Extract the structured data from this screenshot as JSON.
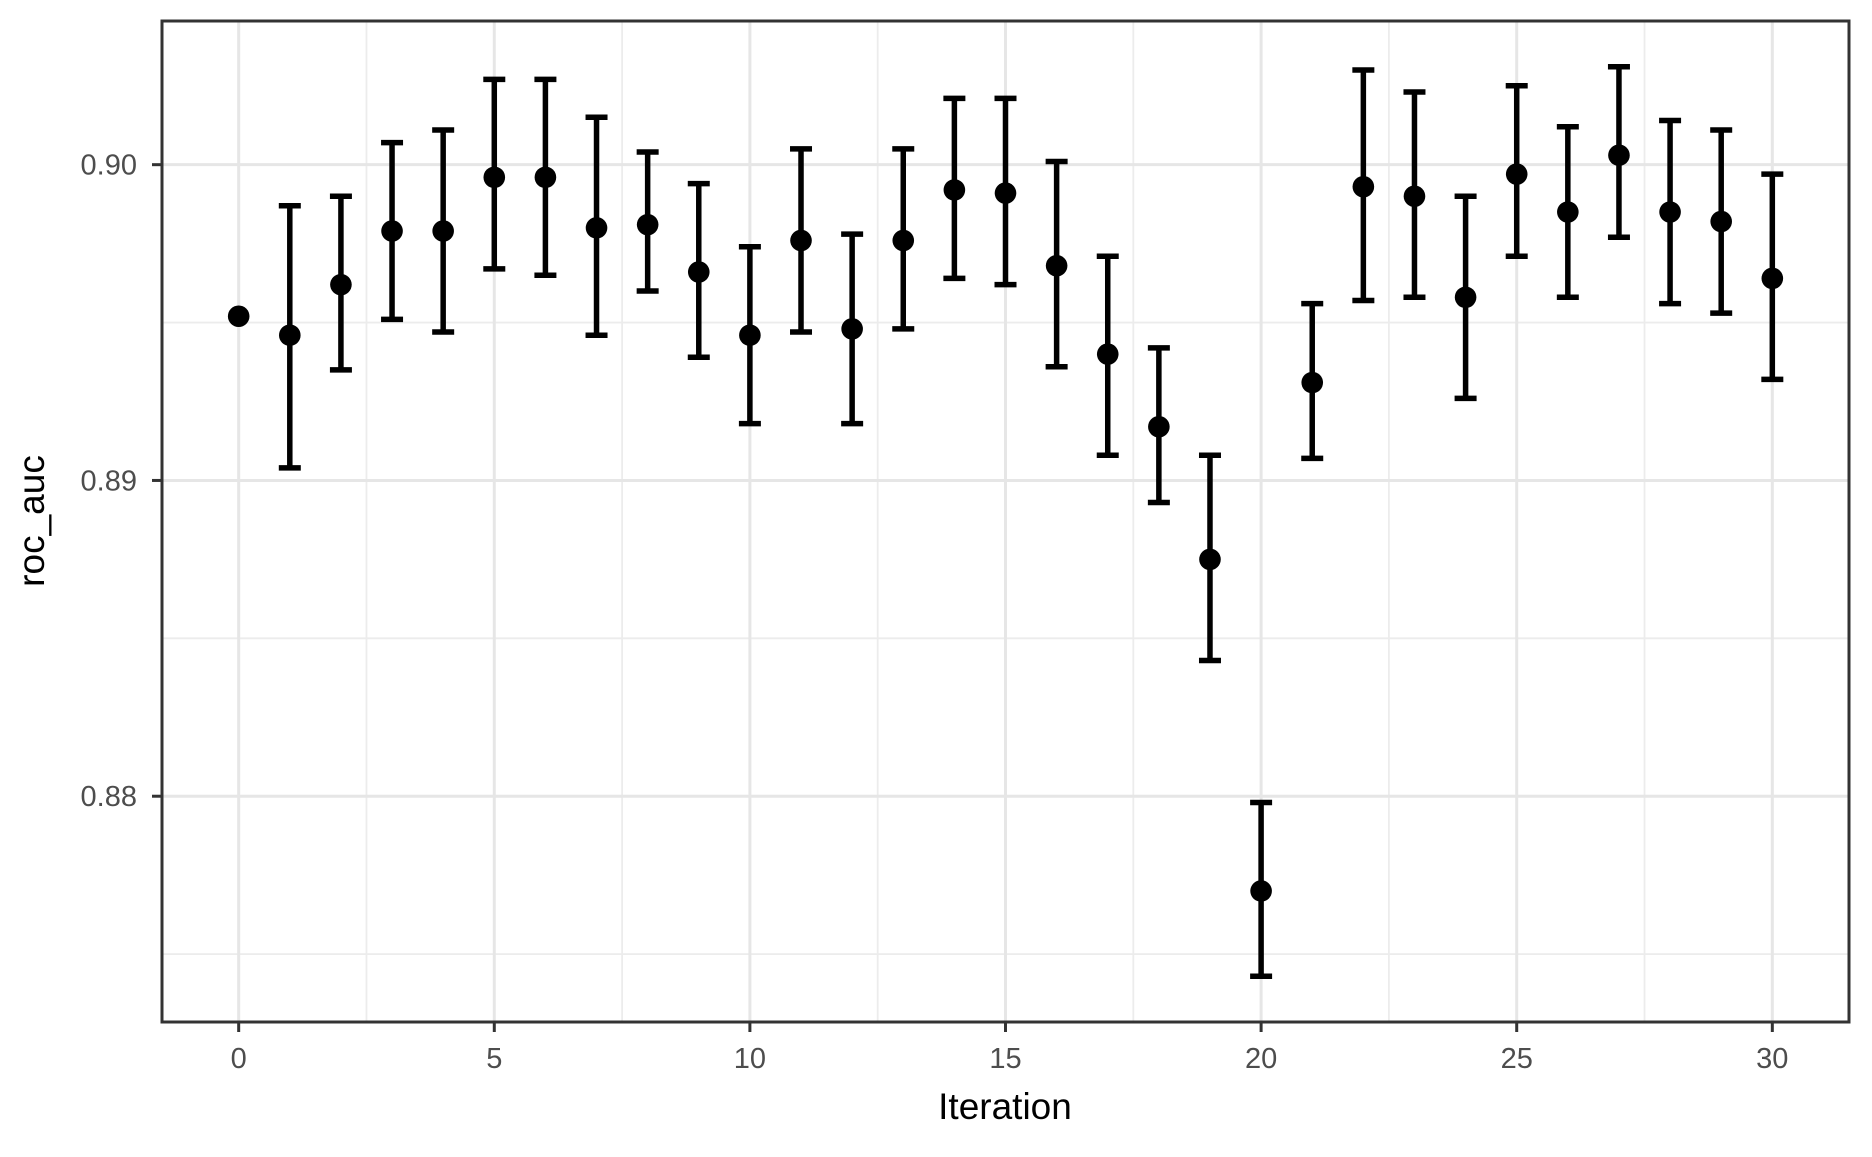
{
  "chart_data": {
    "type": "scatter",
    "subtype": "pointrange",
    "title": "",
    "xlabel": "Iteration",
    "ylabel": "roc_auc",
    "legend": "none",
    "grid": "on",
    "xlim": [
      -1.5,
      31.5
    ],
    "ylim": [
      0.87285,
      0.90455
    ],
    "x_breaks": [
      0,
      5,
      10,
      15,
      20,
      25,
      30
    ],
    "x_tick_labels": [
      "0",
      "5",
      "10",
      "15",
      "20",
      "25",
      "30"
    ],
    "x_minor_breaks": [
      2.5,
      7.5,
      12.5,
      17.5,
      22.5,
      27.5
    ],
    "y_breaks": [
      0.9,
      0.89,
      0.88
    ],
    "y_tick_labels": [
      "0.90",
      "0.89",
      "0.88"
    ],
    "y_minor_breaks": [
      0.895,
      0.885,
      0.875
    ],
    "points": [
      {
        "x": 0,
        "y": 0.8952,
        "ymin": null,
        "ymax": null
      },
      {
        "x": 1,
        "y": 0.8946,
        "ymin": 0.8904,
        "ymax": 0.8987
      },
      {
        "x": 2,
        "y": 0.8962,
        "ymin": 0.8935,
        "ymax": 0.899
      },
      {
        "x": 3,
        "y": 0.8979,
        "ymin": 0.8951,
        "ymax": 0.9007
      },
      {
        "x": 4,
        "y": 0.8979,
        "ymin": 0.8947,
        "ymax": 0.9011
      },
      {
        "x": 5,
        "y": 0.8996,
        "ymin": 0.8967,
        "ymax": 0.9027
      },
      {
        "x": 6,
        "y": 0.8996,
        "ymin": 0.8965,
        "ymax": 0.9027
      },
      {
        "x": 7,
        "y": 0.898,
        "ymin": 0.8946,
        "ymax": 0.9015
      },
      {
        "x": 8,
        "y": 0.8981,
        "ymin": 0.896,
        "ymax": 0.9004
      },
      {
        "x": 9,
        "y": 0.8966,
        "ymin": 0.8939,
        "ymax": 0.8994
      },
      {
        "x": 10,
        "y": 0.8946,
        "ymin": 0.8918,
        "ymax": 0.8974
      },
      {
        "x": 11,
        "y": 0.8976,
        "ymin": 0.8947,
        "ymax": 0.9005
      },
      {
        "x": 12,
        "y": 0.8948,
        "ymin": 0.8918,
        "ymax": 0.8978
      },
      {
        "x": 13,
        "y": 0.8976,
        "ymin": 0.8948,
        "ymax": 0.9005
      },
      {
        "x": 14,
        "y": 0.8992,
        "ymin": 0.8964,
        "ymax": 0.9021
      },
      {
        "x": 15,
        "y": 0.8991,
        "ymin": 0.8962,
        "ymax": 0.9021
      },
      {
        "x": 16,
        "y": 0.8968,
        "ymin": 0.8936,
        "ymax": 0.9001
      },
      {
        "x": 17,
        "y": 0.894,
        "ymin": 0.8908,
        "ymax": 0.8971
      },
      {
        "x": 18,
        "y": 0.8917,
        "ymin": 0.8893,
        "ymax": 0.8942
      },
      {
        "x": 19,
        "y": 0.8875,
        "ymin": 0.8843,
        "ymax": 0.8908
      },
      {
        "x": 20,
        "y": 0.877,
        "ymin": 0.8743,
        "ymax": 0.8798
      },
      {
        "x": 21,
        "y": 0.8931,
        "ymin": 0.8907,
        "ymax": 0.8956
      },
      {
        "x": 22,
        "y": 0.8993,
        "ymin": 0.8957,
        "ymax": 0.903
      },
      {
        "x": 23,
        "y": 0.899,
        "ymin": 0.8958,
        "ymax": 0.9023
      },
      {
        "x": 24,
        "y": 0.8958,
        "ymin": 0.8926,
        "ymax": 0.899
      },
      {
        "x": 25,
        "y": 0.8997,
        "ymin": 0.8971,
        "ymax": 0.9025
      },
      {
        "x": 26,
        "y": 0.8985,
        "ymin": 0.8958,
        "ymax": 0.9012
      },
      {
        "x": 27,
        "y": 0.9003,
        "ymin": 0.8977,
        "ymax": 0.9031
      },
      {
        "x": 28,
        "y": 0.8985,
        "ymin": 0.8956,
        "ymax": 0.9014
      },
      {
        "x": 29,
        "y": 0.8982,
        "ymin": 0.8953,
        "ymax": 0.9011
      },
      {
        "x": 30,
        "y": 0.8964,
        "ymin": 0.8932,
        "ymax": 0.8997
      }
    ],
    "style": {
      "point_color": "#000000",
      "errorbar_color": "#000000",
      "panel_background": "#FFFFFF",
      "panel_border_color": "#333333",
      "grid_major_color": "#E6E6E6",
      "grid_minor_color": "#ECECEC",
      "tick_color": "#333333",
      "tick_label_color": "#4D4D4D",
      "axis_title_color": "#000000"
    }
  }
}
